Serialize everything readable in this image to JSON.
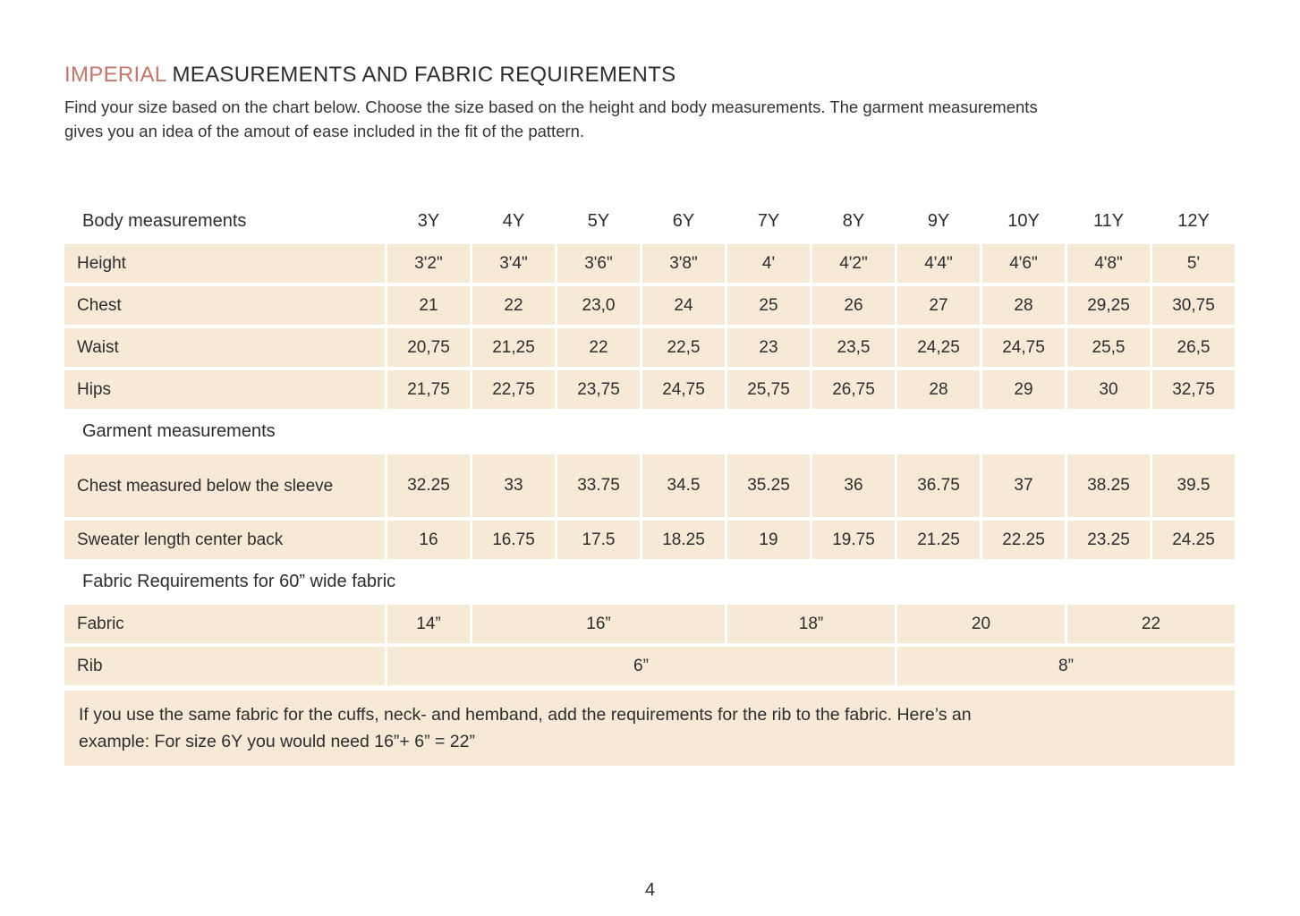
{
  "page": {
    "title_accent": "IMPERIAL",
    "title_rest": " MEASUREMENTS AND FABRIC REQUIREMENTS",
    "intro_line1": "Find your size based on the chart below. Choose the size based on the height and body measurements. The garment measurements",
    "intro_line2": "gives you an idea of the amout of ease included in the fit of the pattern.",
    "page_number": "4"
  },
  "colors": {
    "accent": "#c4766b",
    "cell_background": "#f6ead6",
    "text": "#2d2d2d"
  },
  "table": {
    "header": {
      "label": "Body measurements",
      "sizes": [
        "3Y",
        "4Y",
        "5Y",
        "6Y",
        "7Y",
        "8Y",
        "9Y",
        "10Y",
        "11Y",
        "12Y"
      ]
    },
    "body_rows": [
      {
        "label": "Height",
        "values": [
          "3'2\"",
          "3'4\"",
          "3'6\"",
          "3'8\"",
          "4'",
          "4'2\"",
          "4'4\"",
          "4'6\"",
          "4'8\"",
          "5'"
        ]
      },
      {
        "label": "Chest",
        "values": [
          "21",
          "22",
          "23,0",
          "24",
          "25",
          "26",
          "27",
          "28",
          "29,25",
          "30,75"
        ]
      },
      {
        "label": "Waist",
        "values": [
          "20,75",
          "21,25",
          "22",
          "22,5",
          "23",
          "23,5",
          "24,25",
          "24,75",
          "25,5",
          "26,5"
        ]
      },
      {
        "label": "Hips",
        "values": [
          "21,75",
          "22,75",
          "23,75",
          "24,75",
          "25,75",
          "26,75",
          "28",
          "29",
          "30",
          "32,75"
        ]
      }
    ],
    "garment_section_label": "Garment measurements",
    "garment_rows": [
      {
        "label": "Chest measured below the sleeve",
        "values": [
          "32.25",
          "33",
          "33.75",
          "34.5",
          "35.25",
          "36",
          "36.75",
          "37",
          "38.25",
          "39.5"
        ]
      },
      {
        "label": "Sweater length center back",
        "values": [
          "16",
          "16.75",
          "17.5",
          "18.25",
          "19",
          "19.75",
          "21.25",
          "22.25",
          "23.25",
          "24.25"
        ]
      }
    ],
    "fabric_section_label": "Fabric Requirements for 60” wide fabric",
    "fabric_row": {
      "label": "Fabric",
      "cells": [
        {
          "value": "14”",
          "span": 1
        },
        {
          "value": "16”",
          "span": 3
        },
        {
          "value": "18”",
          "span": 2
        },
        {
          "value": "20",
          "span": 2
        },
        {
          "value": "22",
          "span": 2
        }
      ]
    },
    "rib_row": {
      "label": "Rib",
      "cells": [
        {
          "value": "6”",
          "span": 6
        },
        {
          "value": "8”",
          "span": 4
        }
      ]
    }
  },
  "note": {
    "line1": "If you use the same fabric for the cuffs, neck- and hemband, add the requirements for the rib to the fabric. Here’s an",
    "line2": "example: For size 6Y you would need 16”+ 6” = 22”"
  }
}
